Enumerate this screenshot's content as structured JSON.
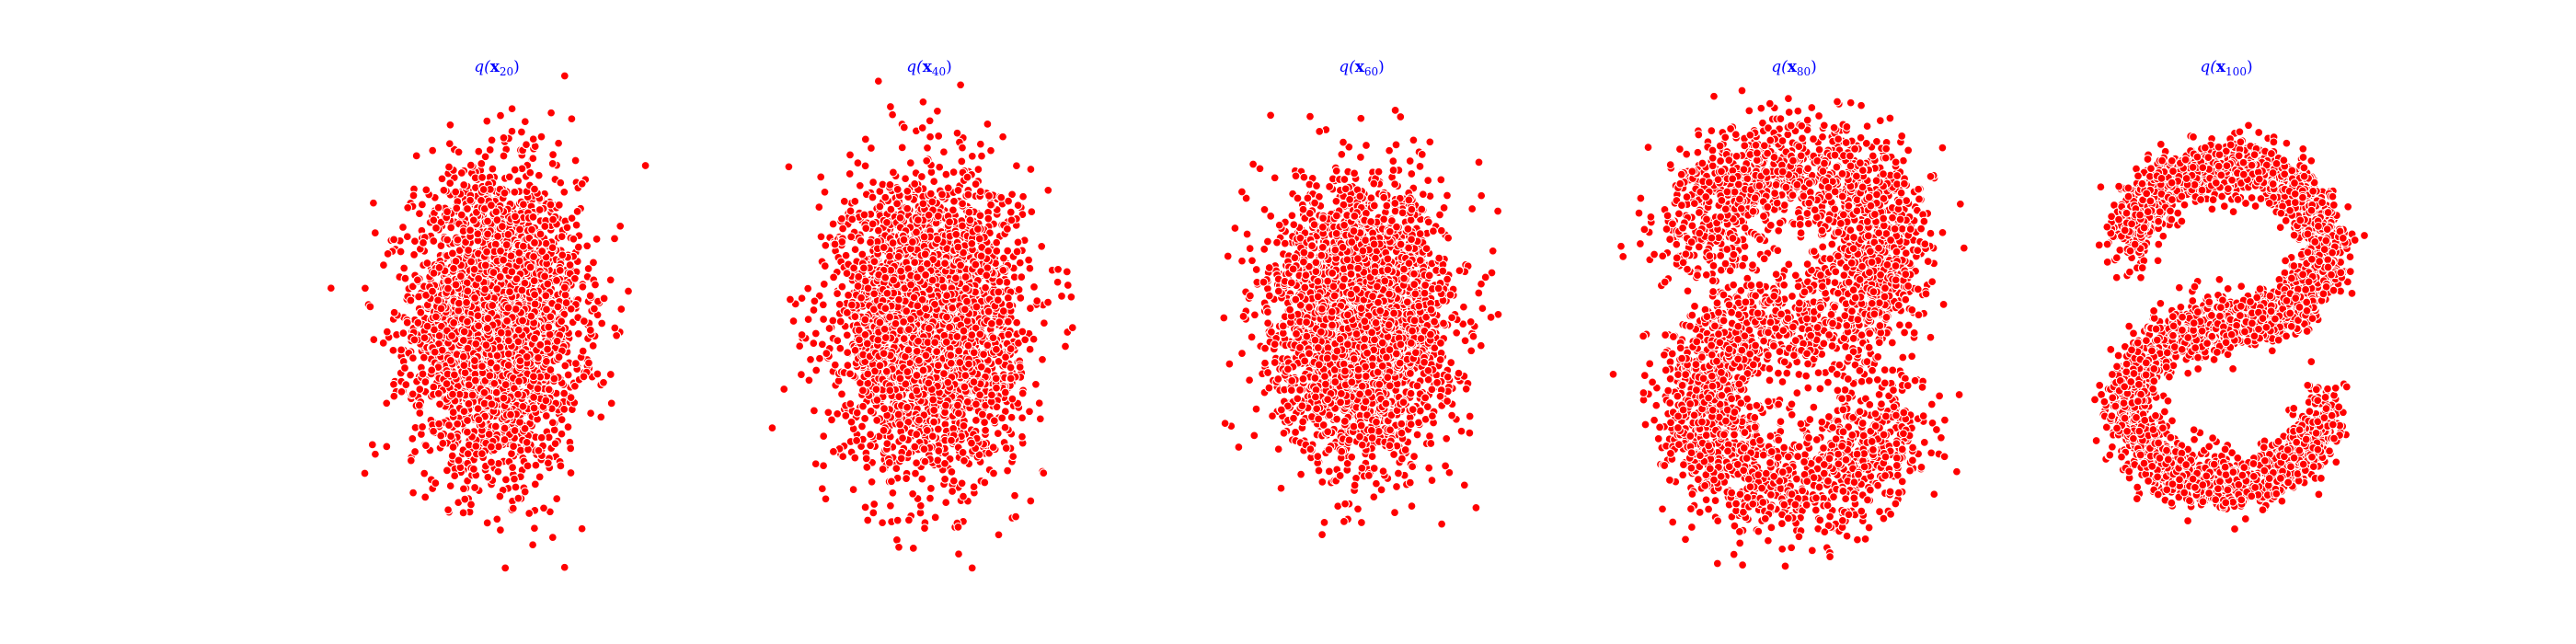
{
  "chart_data": [
    {
      "type": "scatter",
      "title": {
        "main": "q(",
        "var": "x",
        "sub": "20",
        "close": ")"
      },
      "marker_color": "#ff0000",
      "edge_color": "#ffffff",
      "title_color": "#0000ff",
      "axes_visible": false,
      "xlim": [
        -3.2,
        3.2
      ],
      "ylim": [
        -3.5,
        3.5
      ],
      "shape": "gaussian",
      "spread": [
        0.68,
        1.05
      ],
      "n_points": 3200
    },
    {
      "type": "scatter",
      "title": {
        "main": "q(",
        "var": "x",
        "sub": "40",
        "close": ")"
      },
      "marker_color": "#ff0000",
      "edge_color": "#ffffff",
      "title_color": "#0000ff",
      "axes_visible": false,
      "xlim": [
        -3.2,
        3.2
      ],
      "ylim": [
        -3.5,
        3.5
      ],
      "shape": "gaussian",
      "spread": [
        0.72,
        1.05
      ],
      "n_points": 3200
    },
    {
      "type": "scatter",
      "title": {
        "main": "q(",
        "var": "x",
        "sub": "60",
        "close": ")"
      },
      "marker_color": "#ff0000",
      "edge_color": "#ffffff",
      "title_color": "#0000ff",
      "axes_visible": false,
      "xlim": [
        -3.2,
        3.2
      ],
      "ylim": [
        -3.5,
        3.5
      ],
      "shape": "gaussian",
      "spread": [
        0.7,
        0.95
      ],
      "n_points": 3200
    },
    {
      "type": "scatter",
      "title": {
        "main": "q(",
        "var": "x",
        "sub": "80",
        "close": ")"
      },
      "marker_color": "#ff0000",
      "edge_color": "#ffffff",
      "title_color": "#0000ff",
      "axes_visible": false,
      "xlim": [
        -3.2,
        3.2
      ],
      "ylim": [
        -3.5,
        3.5
      ],
      "shape": "s-curve",
      "noise": 0.42,
      "n_points": 3200
    },
    {
      "type": "scatter",
      "title": {
        "main": "q(",
        "var": "x",
        "sub": "100",
        "close": ")"
      },
      "marker_color": "#ff0000",
      "edge_color": "#ffffff",
      "title_color": "#0000ff",
      "axes_visible": false,
      "xlim": [
        -3.2,
        3.2
      ],
      "ylim": [
        -3.5,
        3.5
      ],
      "shape": "s-curve",
      "noise": 0.2,
      "n_points": 3200
    }
  ]
}
